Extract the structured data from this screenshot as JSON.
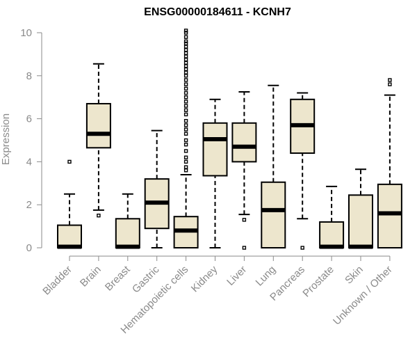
{
  "chart_data": {
    "type": "boxplot",
    "title": "ENSG00000184611 - KCNH7",
    "xlabel": "",
    "ylabel": "Expression",
    "ylim": [
      0,
      10
    ],
    "yticks": [
      0,
      2,
      4,
      6,
      8,
      10
    ],
    "box_fill": "#ede6cd",
    "categories": [
      "Bladder",
      "Brain",
      "Breast",
      "Gastric",
      "Hematopoietic cells",
      "Kidney",
      "Liver",
      "Lung",
      "Pancreas",
      "Prostate",
      "Skin",
      "Unknown / Other"
    ],
    "boxes": [
      {
        "label": "Bladder",
        "min": 0,
        "q1": 0,
        "median": 0.05,
        "q3": 1.05,
        "max": 2.5,
        "outliers": [
          4.0
        ]
      },
      {
        "label": "Brain",
        "min": 1.75,
        "q1": 4.65,
        "median": 5.3,
        "q3": 6.7,
        "max": 8.55,
        "outliers": [
          1.5
        ]
      },
      {
        "label": "Breast",
        "min": 0,
        "q1": 0,
        "median": 0.05,
        "q3": 1.35,
        "max": 2.5,
        "outliers": []
      },
      {
        "label": "Gastric",
        "min": 0,
        "q1": 0.9,
        "median": 2.1,
        "q3": 3.2,
        "max": 5.45,
        "outliers": []
      },
      {
        "label": "Hematopoietic cells",
        "min": 0,
        "q1": 0,
        "median": 0.8,
        "q3": 1.45,
        "max": 3.4,
        "outliers": [
          3.6,
          3.75,
          4.0,
          4.2,
          4.5,
          4.8,
          5.0,
          5.3,
          5.5,
          5.7,
          5.9,
          6.2,
          6.4,
          6.6,
          6.8,
          7.0,
          7.2,
          7.4,
          7.6,
          7.8,
          8.0,
          8.15,
          8.3,
          8.45,
          8.6,
          8.75,
          8.9,
          9.05,
          9.2,
          9.35,
          9.5,
          9.6,
          9.8,
          10.0,
          10.1
        ]
      },
      {
        "label": "Kidney",
        "min": 0,
        "q1": 3.35,
        "median": 5.05,
        "q3": 5.8,
        "max": 6.9,
        "outliers": []
      },
      {
        "label": "Liver",
        "min": 1.55,
        "q1": 4.0,
        "median": 4.7,
        "q3": 5.8,
        "max": 7.25,
        "outliers": [
          1.3,
          0.0
        ]
      },
      {
        "label": "Lung",
        "min": 0,
        "q1": 0,
        "median": 1.75,
        "q3": 3.05,
        "max": 7.55,
        "outliers": []
      },
      {
        "label": "Pancreas",
        "min": 1.35,
        "q1": 4.4,
        "median": 5.7,
        "q3": 6.9,
        "max": 7.2,
        "outliers": [
          0.0
        ]
      },
      {
        "label": "Prostate",
        "min": 0,
        "q1": 0,
        "median": 0.05,
        "q3": 1.2,
        "max": 2.85,
        "outliers": []
      },
      {
        "label": "Skin",
        "min": 0,
        "q1": 0,
        "median": 0.05,
        "q3": 2.45,
        "max": 3.65,
        "outliers": []
      },
      {
        "label": "Unknown / Other",
        "min": 0,
        "q1": 0,
        "median": 1.6,
        "q3": 2.95,
        "max": 7.1,
        "outliers": [
          7.6,
          7.8
        ]
      }
    ]
  }
}
